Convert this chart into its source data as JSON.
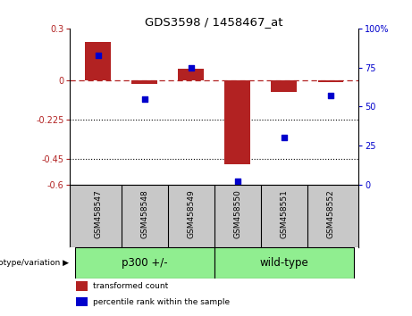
{
  "title": "GDS3598 / 1458467_at",
  "samples": [
    "GSM458547",
    "GSM458548",
    "GSM458549",
    "GSM458550",
    "GSM458551",
    "GSM458552"
  ],
  "red_values": [
    0.22,
    -0.02,
    0.07,
    -0.48,
    -0.065,
    -0.01
  ],
  "blue_values": [
    83,
    55,
    75,
    2,
    30,
    57
  ],
  "left_ylim": [
    -0.6,
    0.3
  ],
  "right_ylim": [
    0,
    100
  ],
  "left_yticks": [
    0.3,
    0,
    -0.225,
    -0.45,
    -0.6
  ],
  "left_yticklabels": [
    "0.3",
    "0",
    "-0.225",
    "-0.45",
    "-0.6"
  ],
  "right_yticks": [
    100,
    75,
    50,
    25,
    0
  ],
  "right_yticklabels": [
    "100%",
    "75",
    "50",
    "25",
    "0"
  ],
  "dotted_lines": [
    -0.225,
    -0.45
  ],
  "group1_label": "p300 +/-",
  "group2_label": "wild-type",
  "bar_color": "#B22222",
  "dot_color": "#0000CC",
  "group_color": "#90EE90",
  "label_bg_color": "#C8C8C8",
  "bar_width": 0.55,
  "legend_red_label": "transformed count",
  "legend_blue_label": "percentile rank within the sample",
  "genotype_label": "genotype/variation",
  "background_color": "#FFFFFF"
}
